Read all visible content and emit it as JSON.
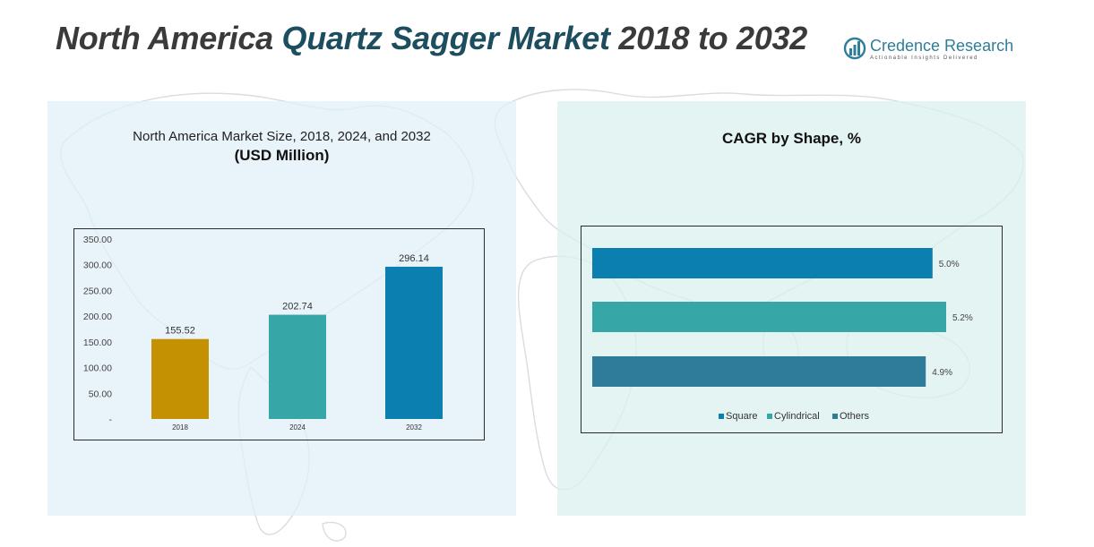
{
  "header": {
    "title_prefix": "North America ",
    "title_accent": "Quartz Sagger Market",
    "title_suffix": " 2018 to 2032"
  },
  "brand": {
    "name": "Credence Research",
    "tagline": "Actionable Insights Delivered"
  },
  "colors": {
    "title_gray": "#3a3a3a",
    "title_accent": "#1d4e5f",
    "brand_blue": "#2e7e9a",
    "bar_2018": "#c49102",
    "bar_2024": "#36a6a6",
    "bar_2032": "#0b80b0",
    "square": "#0b80b0",
    "cylindrical": "#36a6a6",
    "others": "#2e7b9a"
  },
  "left_panel": {
    "title": "North America Market Size, 2018, 2024, and 2032",
    "subtitle": "(USD Million)"
  },
  "right_panel": {
    "title": "CAGR by Shape, %"
  },
  "chart_data": [
    {
      "type": "bar",
      "title": "North America Market Size, 2018, 2024, and 2032 (USD Million)",
      "categories": [
        "2018",
        "2024",
        "2032"
      ],
      "values": [
        155.52,
        202.74,
        296.14
      ],
      "value_labels": [
        "155.52",
        "202.74",
        "296.14"
      ],
      "ylim": [
        0,
        350
      ],
      "yticks": [
        0,
        50,
        100,
        150,
        200,
        250,
        300,
        350
      ],
      "ytick_labels": [
        "-",
        "50.00",
        "100.00",
        "150.00",
        "200.00",
        "250.00",
        "300.00",
        "350.00"
      ],
      "xlabel": "",
      "ylabel": "",
      "grid": false
    },
    {
      "type": "bar",
      "orientation": "horizontal",
      "title": "CAGR by Shape, %",
      "series": [
        {
          "name": "Square",
          "value": 5.0,
          "label": "5.0%"
        },
        {
          "name": "Cylindrical",
          "value": 5.2,
          "label": "5.2%"
        },
        {
          "name": "Others",
          "value": 4.9,
          "label": "4.9%"
        }
      ],
      "xlim": [
        0,
        5.2
      ],
      "legend_position": "bottom",
      "grid": false
    }
  ]
}
